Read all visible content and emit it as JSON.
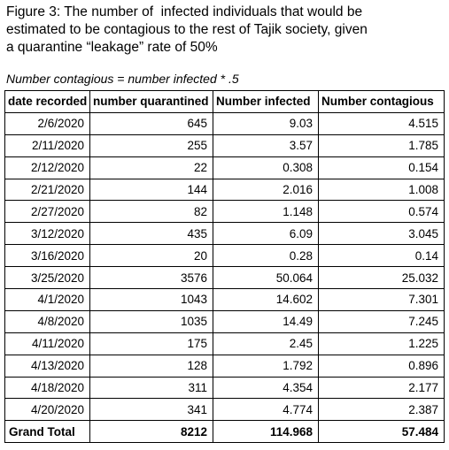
{
  "caption": {
    "lines": [
      "Figure 3: The number of  infected individuals that would be",
      "estimated to be contagious to the rest of Tajik society, given",
      "a quarantine “leakage” rate of 50%"
    ]
  },
  "formula": "Number contagious = number infected * .5",
  "table": {
    "headers": [
      "date recorded",
      "number quarantined",
      "Number infected",
      "Number contagious"
    ],
    "rows": [
      [
        "2/6/2020",
        "645",
        "9.03",
        "4.515"
      ],
      [
        "2/11/2020",
        "255",
        "3.57",
        "1.785"
      ],
      [
        "2/12/2020",
        "22",
        "0.308",
        "0.154"
      ],
      [
        "2/21/2020",
        "144",
        "2.016",
        "1.008"
      ],
      [
        "2/27/2020",
        "82",
        "1.148",
        "0.574"
      ],
      [
        "3/12/2020",
        "435",
        "6.09",
        "3.045"
      ],
      [
        "3/16/2020",
        "20",
        "0.28",
        "0.14"
      ],
      [
        "3/25/2020",
        "3576",
        "50.064",
        "25.032"
      ],
      [
        "4/1/2020",
        "1043",
        "14.602",
        "7.301"
      ],
      [
        "4/8/2020",
        "1035",
        "14.49",
        "7.245"
      ],
      [
        "4/11/2020",
        "175",
        "2.45",
        "1.225"
      ],
      [
        "4/13/2020",
        "128",
        "1.792",
        "0.896"
      ],
      [
        "4/18/2020",
        "311",
        "4.354",
        "2.177"
      ],
      [
        "4/20/2020",
        "341",
        "4.774",
        "2.387"
      ]
    ],
    "total": [
      "Grand Total",
      "8212",
      "114.968",
      "57.484"
    ]
  }
}
